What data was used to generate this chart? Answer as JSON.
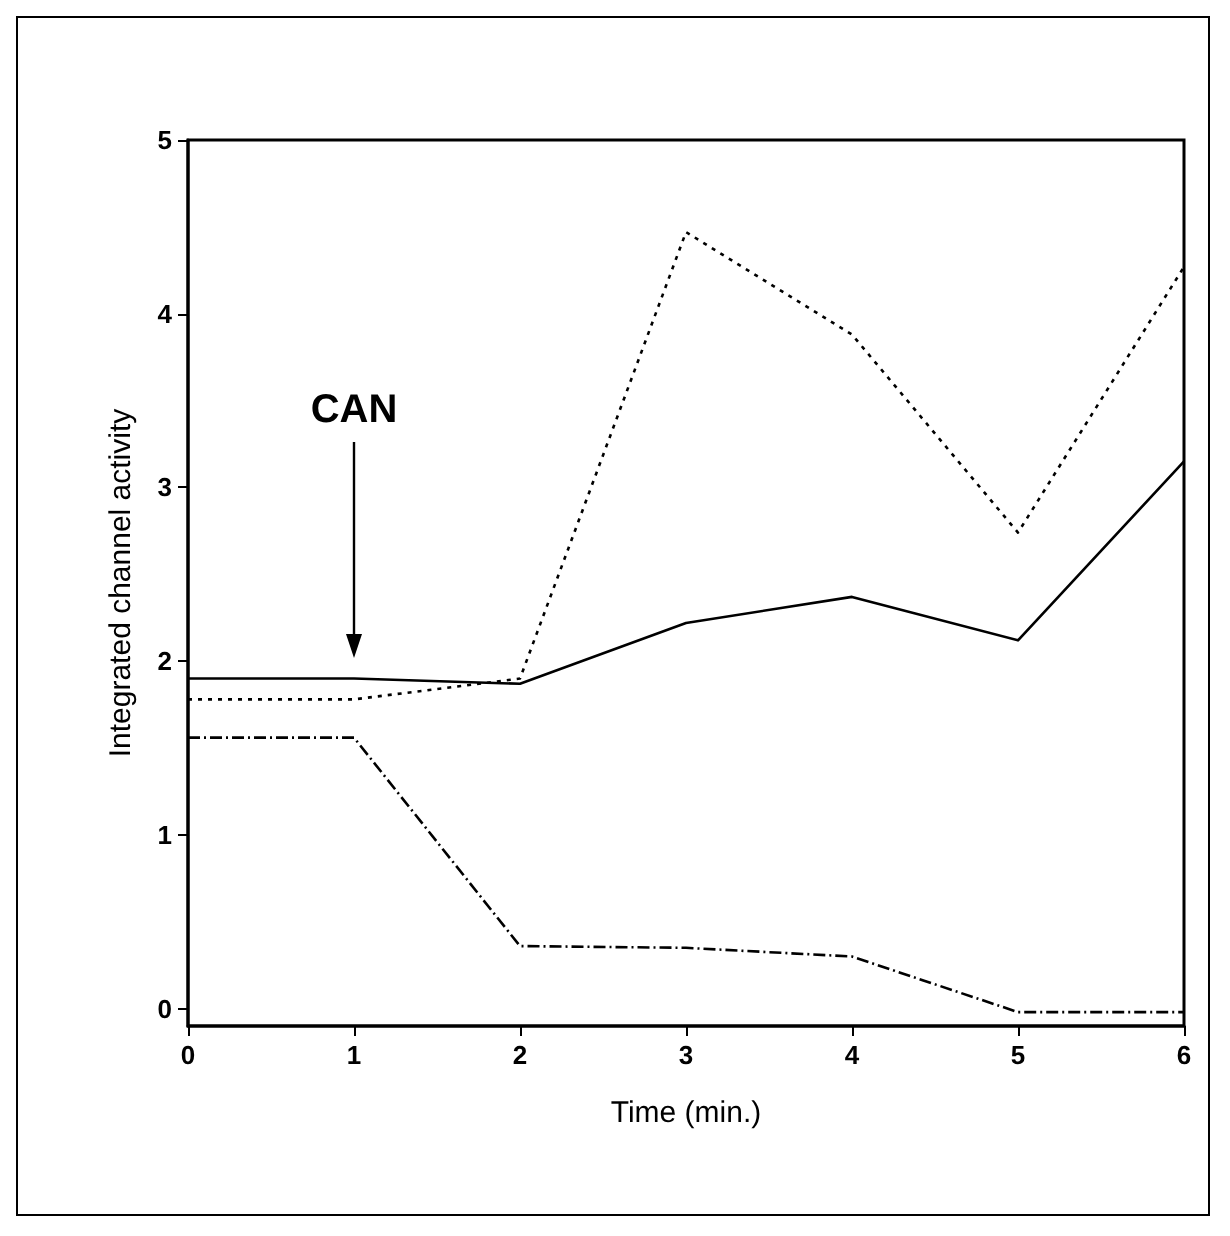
{
  "chart_data": {
    "type": "line",
    "xlabel": "Time (min.)",
    "ylabel": "Integrated channel activity",
    "x": [
      0,
      1,
      2,
      3,
      4,
      5,
      6
    ],
    "series": [
      {
        "color": "#000000",
        "line_style": "solid",
        "values": [
          1.9,
          1.9,
          1.87,
          2.22,
          2.37,
          2.12,
          3.15
        ]
      },
      {
        "color": "#000000",
        "line_style": "dotted",
        "values": [
          1.78,
          1.78,
          1.9,
          4.47,
          3.88,
          2.74,
          4.27
        ]
      },
      {
        "color": "#000000",
        "line_style": "dashed",
        "values": [
          1.56,
          1.56,
          0.36,
          0.35,
          0.3,
          -0.02,
          -0.02
        ]
      }
    ],
    "xlim": [
      0,
      6
    ],
    "xticks": [
      0,
      1,
      2,
      3,
      4,
      5,
      6
    ],
    "ylim": [
      -0.1,
      5
    ],
    "yticks": [
      0,
      1,
      2,
      3,
      4,
      5
    ],
    "grid": false,
    "marker": "none",
    "annotations": [
      "CAN"
    ]
  }
}
